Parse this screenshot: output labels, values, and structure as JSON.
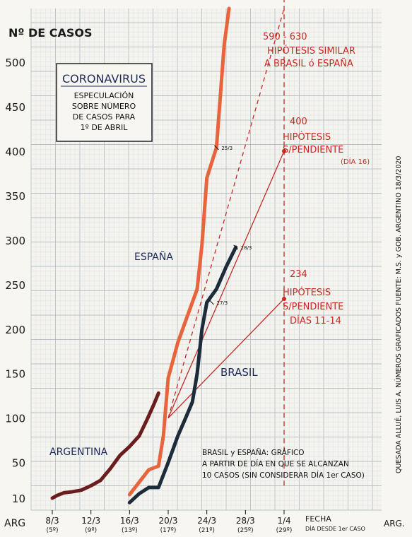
{
  "chart_data": {
    "type": "line",
    "ylabel": "Nº DE CASOS",
    "y_ticks": [
      10,
      50,
      100,
      150,
      200,
      250,
      300,
      350,
      400,
      450,
      500
    ],
    "x_ticks": [
      {
        "x": 8,
        "label": "8/3",
        "sub": "(5º)"
      },
      {
        "x": 12,
        "label": "12/3",
        "sub": "(9º)"
      },
      {
        "x": 16,
        "label": "16/3",
        "sub": "(13º)"
      },
      {
        "x": 20,
        "label": "20/3",
        "sub": "(17º)"
      },
      {
        "x": 24,
        "label": "24/3",
        "sub": "(21º)"
      },
      {
        "x": 28,
        "label": "28/3",
        "sub": "(25º)"
      },
      {
        "x": 32,
        "label": "1/4",
        "sub": "(29º)"
      }
    ],
    "x_prefix": "ARG",
    "x_suffix": "ARG.",
    "x_axis_title": "FECHA",
    "x_axis_subtitle": "DÍA DESDE 1er CASO",
    "series": [
      {
        "name": "ARGENTINA",
        "color": "#6b1d1d",
        "points": [
          [
            8,
            10
          ],
          [
            8.5,
            13
          ],
          [
            9.2,
            16
          ],
          [
            10,
            17
          ],
          [
            11,
            19
          ],
          [
            12,
            24
          ],
          [
            13,
            30
          ],
          [
            14,
            43
          ],
          [
            15,
            58
          ],
          [
            16,
            68
          ],
          [
            17,
            80
          ],
          [
            17.8,
            98
          ],
          [
            18.5,
            115
          ],
          [
            19,
            128
          ]
        ]
      },
      {
        "name": "ESPAÑA",
        "color": "#e8643c",
        "points": [
          [
            16,
            14
          ],
          [
            17,
            28
          ],
          [
            18,
            42
          ],
          [
            19,
            46
          ],
          [
            19.5,
            80
          ],
          [
            20,
            145
          ],
          [
            21,
            185
          ],
          [
            22,
            215
          ],
          [
            23,
            245
          ],
          [
            23.5,
            295
          ],
          [
            24,
            370
          ],
          [
            25,
            404
          ],
          [
            25.8,
            520
          ],
          [
            26.3,
            600
          ]
        ]
      },
      {
        "name": "BRASIL",
        "color": "#1c2c3a",
        "points": [
          [
            16,
            5
          ],
          [
            17,
            15
          ],
          [
            18,
            22
          ],
          [
            19,
            22
          ],
          [
            20,
            50
          ],
          [
            21,
            80
          ],
          [
            21.8,
            100
          ],
          [
            22.5,
            118
          ],
          [
            23,
            150
          ],
          [
            23.5,
            200
          ],
          [
            24,
            230
          ],
          [
            25,
            245
          ],
          [
            26,
            270
          ],
          [
            27,
            292
          ]
        ]
      }
    ],
    "projections": [
      {
        "label": "590 - 630",
        "from": [
          20,
          100
        ],
        "to": [
          32,
          595
        ],
        "style": "dashed"
      },
      {
        "label": "400",
        "from": [
          20,
          100
        ],
        "to": [
          32,
          400
        ],
        "style": "solid"
      },
      {
        "label": "234",
        "from": [
          20,
          100
        ],
        "to": [
          32,
          234
        ],
        "style": "solid"
      }
    ],
    "point_marks": [
      {
        "series": "ESPAÑA",
        "label": "25/3",
        "x": 25,
        "y": 404
      },
      {
        "series": "BRASIL",
        "label": "28/3",
        "x": 27,
        "y": 292
      },
      {
        "series": "BRASIL",
        "label": "27/3",
        "x": 24.5,
        "y": 230
      }
    ]
  },
  "labels": {
    "title_box": {
      "title": "CORONAVIRUS",
      "lines": [
        "ESPECULACIÓN",
        "SOBRE NÚMERO",
        "DE CASOS PARA",
        "1º DE ABRIL"
      ]
    },
    "hyp_similar": [
      "HIPÓTESIS SIMILAR",
      "A BRASIL ó ESPAÑA"
    ],
    "hyp_dia16": [
      "HIPÓTESIS",
      "S/PENDIENTE",
      "(DÍA 16)"
    ],
    "hyp_dias11": [
      "HIPÓTESIS",
      "S/PENDIENTE",
      "DÍAS 11-14"
    ],
    "espana": "ESPAÑA",
    "brasil": "BRASIL",
    "argentina": "ARGENTINA",
    "note": [
      "BRASIL y ESPAÑA: GRÁFICO",
      "A PARTIR DE DÍA EN QUE SE ALCANZAN",
      "10 CASOS (SIN CONSIDERAR DÍA 1er CASO)"
    ],
    "side_credit": "QUESADA ALLUÉ, LUIS A.   NÚMEROS GRAFICADOS  FUENTE: M.S. y GOB. ARGENTINO 18/3/2020"
  },
  "colors": {
    "grid_major": "#b9c0c6",
    "grid_minor": "#dde1e4",
    "projection": "#c62a24",
    "axis_text": "#1a1a1a",
    "title_text": "#1c2a5a"
  }
}
